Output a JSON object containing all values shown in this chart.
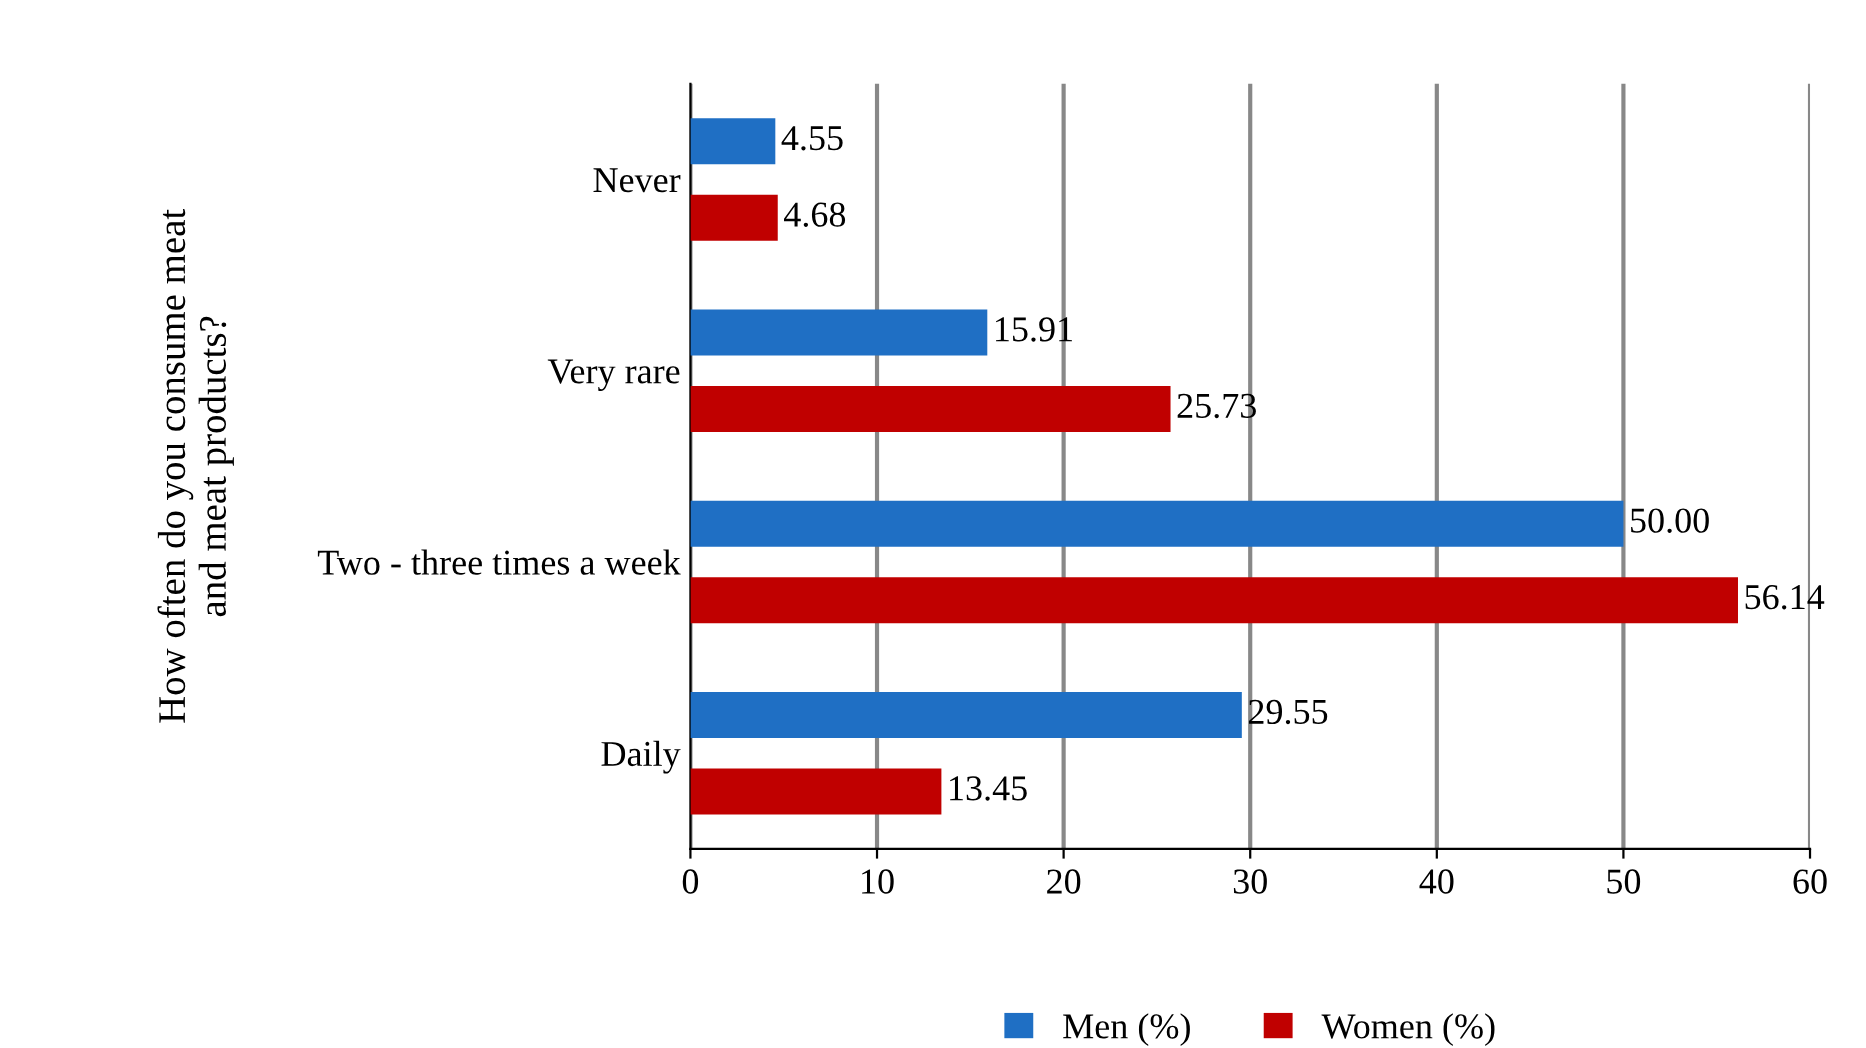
{
  "chart_data": {
    "type": "bar",
    "orientation": "horizontal",
    "ylabel": "How often do you consume meat\nand meat products?",
    "categories": [
      "Never",
      "Very rare",
      "Two - three times a week",
      "Daily"
    ],
    "series": [
      {
        "name": "Men (%)",
        "color": "#1f6fc4",
        "values": [
          4.55,
          15.91,
          50.0,
          29.55
        ],
        "value_labels": [
          "4.55",
          "15.91",
          "50.00",
          "29.55"
        ]
      },
      {
        "name": "Women (%)",
        "color": "#c00000",
        "values": [
          4.68,
          25.73,
          56.14,
          13.45
        ],
        "value_labels": [
          "4.68",
          "25.73",
          "56.14",
          "13.45"
        ]
      }
    ],
    "xlim": [
      0,
      60
    ],
    "xticks": [
      0,
      10,
      20,
      30,
      40,
      50,
      60
    ],
    "grid": "x",
    "legend": "bottom"
  }
}
